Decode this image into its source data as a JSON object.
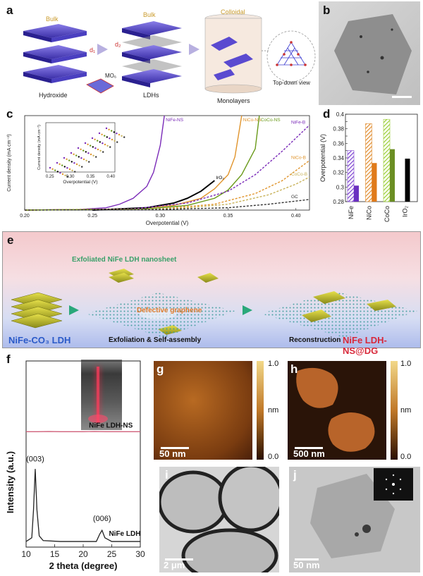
{
  "panels": {
    "a": {
      "label": "a",
      "bulk1": "Bulk",
      "bulk2": "Bulk",
      "colloidal": "Colloidal",
      "hydroxide": "Hydroxide",
      "ldhs": "LDHs",
      "monolayers": "Monolayers",
      "mo6": "MO₆",
      "topdown": "Top-down view",
      "d1": "d₁",
      "d2": "d₂"
    },
    "b": {
      "label": "b"
    },
    "c": {
      "label": "c",
      "inset_xlabel": "Overpotential (V)",
      "inset_ylabel": "Current density (mA cm⁻²)"
    },
    "d": {
      "label": "d"
    },
    "e": {
      "label": "e",
      "exfoliated": "Exfoliated NiFe LDH nanosheet",
      "defective": "Defective graphene",
      "nife_co3": "NiFe-CO₃ LDH",
      "exfoliation": "Exfoliation & Self-assembly",
      "reconstruction": "Reconstruction",
      "product": "NiFe LDH-NS@DG"
    },
    "f": {
      "label": "f",
      "ldhns": "NiFe LDH-NS",
      "ldh": "NiFe LDH",
      "peak003": "(003)",
      "peak006": "(006)"
    },
    "g": {
      "label": "g",
      "scale": "50 nm",
      "cb_top": "1.0",
      "cb_bottom": "0.0",
      "cb_unit": "nm"
    },
    "h": {
      "label": "h",
      "scale": "500 nm",
      "cb_top": "1.0",
      "cb_bottom": "0.0",
      "cb_unit": "nm"
    },
    "i": {
      "label": "i",
      "scale": "2 μm"
    },
    "j": {
      "label": "j",
      "scale": "50 nm"
    }
  },
  "chart_data": [
    {
      "type": "line",
      "panel": "c",
      "xlabel": "Overpotential (V)",
      "ylabel": "Current density (mA cm⁻²)",
      "xlim": [
        0.2,
        0.41
      ],
      "xticks": [
        0.2,
        0.25,
        0.3,
        0.35,
        0.4
      ],
      "series": [
        {
          "name": "NiFe-NS",
          "color": "#7a2ab8",
          "dashed": false,
          "x": [
            0.2,
            0.24,
            0.26,
            0.27,
            0.28,
            0.29,
            0.295,
            0.3,
            0.303
          ],
          "y": [
            0,
            0.5,
            2,
            5,
            10,
            20,
            32,
            55,
            80
          ]
        },
        {
          "name": "NiCo-NS",
          "color": "#e0942c",
          "dashed": false,
          "x": [
            0.2,
            0.28,
            0.31,
            0.33,
            0.34,
            0.35,
            0.355,
            0.36
          ],
          "y": [
            0,
            1,
            4,
            10,
            18,
            30,
            45,
            80
          ]
        },
        {
          "name": "CoCo-NS",
          "color": "#6a9a1a",
          "dashed": false,
          "x": [
            0.2,
            0.29,
            0.32,
            0.34,
            0.35,
            0.36,
            0.37,
            0.373
          ],
          "y": [
            0,
            1,
            4,
            10,
            17,
            30,
            52,
            80
          ]
        },
        {
          "name": "IrO₂",
          "color": "#000000",
          "dashed": false,
          "x": [
            0.25,
            0.29,
            0.31,
            0.32,
            0.33,
            0.34
          ],
          "y": [
            0,
            2,
            6,
            10,
            16,
            25
          ]
        },
        {
          "name": "NiFe-B",
          "color": "#7a2ab8",
          "dashed": true,
          "x": [
            0.2,
            0.28,
            0.32,
            0.35,
            0.37,
            0.39,
            0.41
          ],
          "y": [
            0,
            1,
            6,
            16,
            30,
            50,
            72
          ]
        },
        {
          "name": "NiCo-B",
          "color": "#e0942c",
          "dashed": true,
          "x": [
            0.2,
            0.3,
            0.34,
            0.37,
            0.39,
            0.41
          ],
          "y": [
            0,
            1,
            5,
            14,
            25,
            42
          ]
        },
        {
          "name": "CoCo-B",
          "color": "#c8b25a",
          "dashed": true,
          "x": [
            0.2,
            0.31,
            0.35,
            0.38,
            0.4,
            0.41
          ],
          "y": [
            0,
            1,
            5,
            13,
            22,
            28
          ]
        },
        {
          "name": "GC",
          "color": "#333333",
          "dashed": true,
          "x": [
            0.2,
            0.3,
            0.35,
            0.38,
            0.41
          ],
          "y": [
            0,
            0.5,
            2,
            5,
            9
          ]
        }
      ]
    },
    {
      "type": "bar",
      "panel": "d",
      "ylabel": "Overpotential (V)",
      "ylim": [
        0.28,
        0.4
      ],
      "yticks": [
        0.28,
        0.29,
        0.3,
        0.31,
        0.32,
        0.33,
        0.34,
        0.35,
        0.36,
        0.37,
        0.38,
        0.39,
        0.4
      ],
      "categories": [
        "NiFe",
        "NiCo",
        "CoCo",
        "IrO₂"
      ],
      "series": [
        {
          "pattern": "hatched",
          "values": [
            0.35,
            0.387,
            0.393,
            null
          ],
          "colors": [
            "#7a3fd0",
            "#e08a2a",
            "#9acd32",
            "#000000"
          ]
        },
        {
          "pattern": "solid",
          "values": [
            0.302,
            0.333,
            0.352,
            0.339
          ],
          "colors": [
            "#6a2fc0",
            "#e07a1a",
            "#6b8e23",
            "#000000"
          ]
        }
      ]
    },
    {
      "type": "line",
      "panel": "f",
      "xlabel": "2 theta (degree)",
      "ylabel": "Intensity (a.u.)",
      "xlim": [
        10,
        30
      ],
      "xticks": [
        10,
        15,
        20,
        25,
        30
      ],
      "series": [
        {
          "name": "NiFe LDH-NS",
          "color": "#d0607a",
          "x": [
            10,
            12,
            14,
            16,
            18,
            20,
            22,
            24,
            26,
            28,
            30
          ],
          "y": [
            0.62,
            0.62,
            0.621,
            0.62,
            0.62,
            0.62,
            0.621,
            0.62,
            0.62,
            0.62,
            0.62
          ]
        },
        {
          "name": "NiFe LDH",
          "color": "#222222",
          "x": [
            10,
            11,
            11.3,
            11.6,
            11.9,
            12.3,
            13,
            16,
            20,
            22.3,
            22.9,
            23.3,
            23.8,
            25,
            30
          ],
          "y": [
            0.03,
            0.05,
            0.2,
            0.42,
            0.2,
            0.06,
            0.035,
            0.03,
            0.03,
            0.03,
            0.07,
            0.09,
            0.05,
            0.03,
            0.03
          ]
        }
      ]
    }
  ]
}
